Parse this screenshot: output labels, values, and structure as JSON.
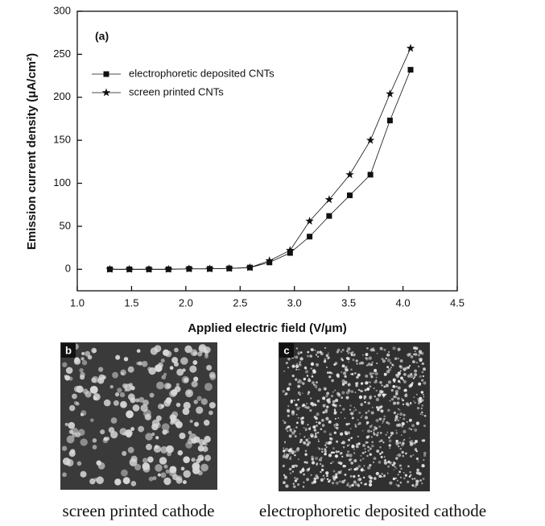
{
  "chart_data": {
    "type": "line",
    "annotation": "(a)",
    "x_label": "Applied electric field (V/μm)",
    "y_label": "Emission current density (μA/cm²)",
    "x": [
      1.3,
      1.48,
      1.66,
      1.84,
      2.03,
      2.22,
      2.4,
      2.59,
      2.77,
      2.96,
      3.14,
      3.32,
      3.51,
      3.7,
      3.88,
      4.07
    ],
    "series": [
      {
        "name": "electrophoretic deposited CNTs",
        "color": "#111111",
        "marker": "square",
        "values": [
          0,
          0,
          0,
          0,
          0.5,
          0.5,
          1,
          2,
          8,
          19,
          38,
          62,
          86,
          110,
          173,
          232
        ]
      },
      {
        "name": "screen printed CNTs",
        "color": "#111111",
        "marker": "star",
        "values": [
          0,
          0,
          0,
          0,
          0.5,
          0.5,
          1,
          2,
          10,
          22,
          56,
          81,
          110,
          150,
          204,
          257
        ]
      }
    ],
    "xlim": [
      1,
      4.5
    ],
    "xticks": [
      {
        "value": 1,
        "label": "1.0"
      },
      1.5,
      {
        "value": 2,
        "label": "2.0"
      },
      2.5,
      {
        "value": 3,
        "label": "3.0"
      },
      3.5,
      {
        "value": 4,
        "label": "4.0"
      },
      4.5
    ],
    "ylim": [
      -25,
      300
    ],
    "yticks": [
      0,
      50,
      100,
      150,
      200,
      250,
      300
    ],
    "legend": "upper-left"
  },
  "panels": [
    {
      "tag": "b",
      "caption": "screen printed cathode"
    },
    {
      "tag": "c",
      "caption": "electrophoretic deposited cathode"
    }
  ]
}
